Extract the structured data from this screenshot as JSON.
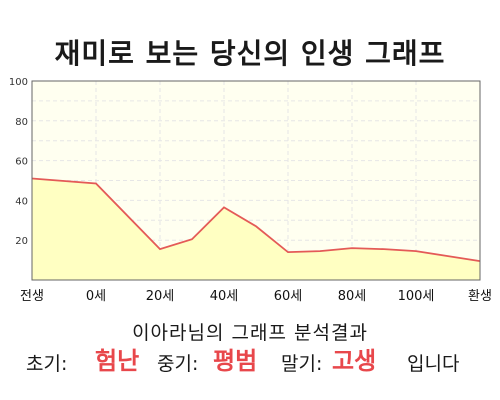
{
  "title": "재미로 보는 당신의 인생 그래프",
  "chart_data": {
    "type": "area",
    "x_categories": [
      "전생",
      "0세",
      "20세",
      "40세",
      "60세",
      "80세",
      "100세",
      "환생"
    ],
    "x": [
      -10,
      0,
      10,
      20,
      30,
      40,
      50,
      60
    ],
    "points": [
      [
        -10,
        51
      ],
      [
        0,
        48.5
      ],
      [
        10,
        15.5
      ],
      [
        15,
        20.5
      ],
      [
        20,
        36.5
      ],
      [
        25,
        27
      ],
      [
        30,
        14
      ],
      [
        35,
        14.5
      ],
      [
        40,
        16
      ],
      [
        45,
        15.5
      ],
      [
        50,
        14.5
      ],
      [
        55,
        12
      ],
      [
        60,
        9.5
      ]
    ],
    "y_ticks": [
      20,
      40,
      60,
      80,
      100
    ],
    "ylim": [
      0,
      100
    ],
    "grid": true,
    "colors": {
      "line": "#e45a57",
      "fill": "#ffffc2",
      "plot_bg": "#fffff0",
      "grid": "#e6e6e6"
    }
  },
  "result": {
    "heading": "이아라님의 그래프 분석결과",
    "early_label": "초기:",
    "early_value": "험난",
    "mid_label": "중기:",
    "mid_value": "평범",
    "late_label": "말기:",
    "late_value": "고생",
    "tail": "입니다",
    "accent_color": "#e8474b"
  }
}
